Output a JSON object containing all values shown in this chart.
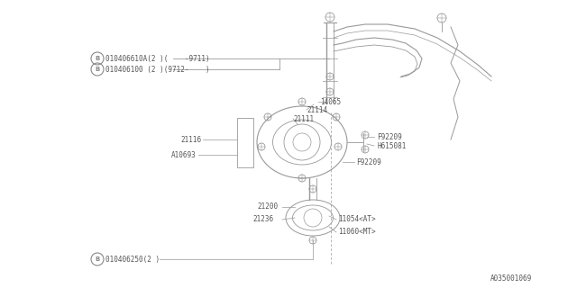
{
  "bg_color": "#ffffff",
  "lc": "#999999",
  "tc": "#555555",
  "diagram_id": "A035001069",
  "label_B1": "010406610A(2 )(    -9711)",
  "label_B2": "010406100 (2 )(9712-    )",
  "label_14065": "14065",
  "label_21114": "21114",
  "label_21111": "21111",
  "label_21116": "21116",
  "label_A10693": "A10693",
  "label_F92209a": "F92209",
  "label_H615081": "H615081",
  "label_F92209b": "F92209",
  "label_21200": "21200",
  "label_21236": "21236",
  "label_11054": "11054<AT>",
  "label_11060": "11060<MT>",
  "label_B3": "010406250(2 )",
  "label_id": "A035001069"
}
